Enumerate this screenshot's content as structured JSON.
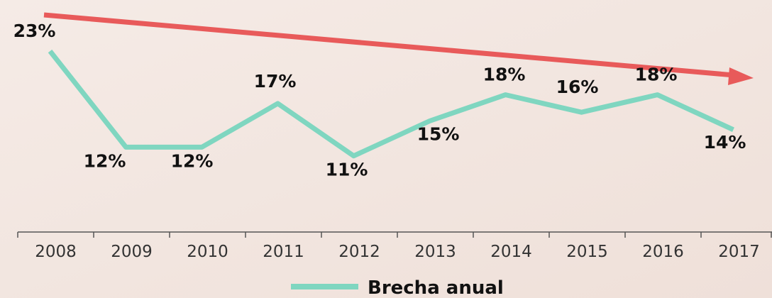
{
  "chart_data": {
    "type": "line",
    "categories": [
      "2008",
      "2009",
      "2010",
      "2011",
      "2012",
      "2013",
      "2014",
      "2015",
      "2016",
      "2017"
    ],
    "series": [
      {
        "name": "Brecha anual",
        "color": "#7fd6c0",
        "values": [
          23,
          12,
          12,
          17,
          11,
          15,
          18,
          16,
          18,
          14
        ],
        "value_labels": [
          "23%",
          "12%",
          "12%",
          "17%",
          "11%",
          "15%",
          "18%",
          "16%",
          "18%",
          "14%"
        ]
      }
    ]
  }
}
